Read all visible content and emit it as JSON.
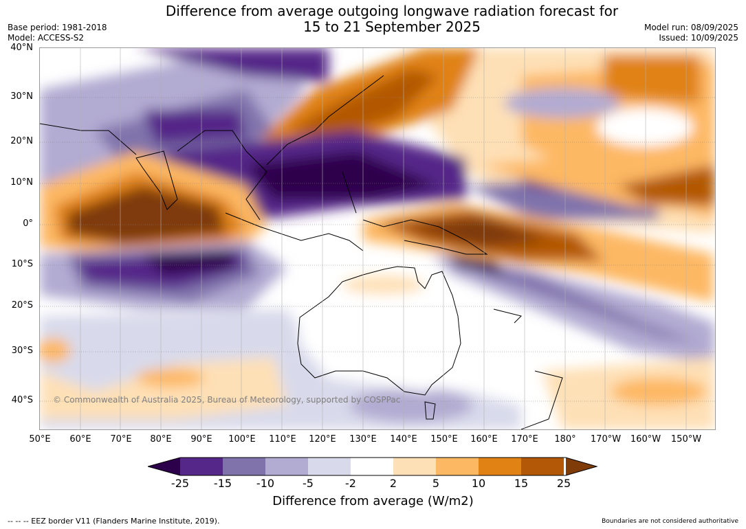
{
  "title_line1": "Difference from average outgoing longwave radiation forecast for",
  "title_line2": "15 to 21 September 2025",
  "base_period": "Base period: 1981-2018",
  "model": "Model: ACCESS-S2",
  "model_run": "Model run: 08/09/2025",
  "issued": "Issued: 10/09/2025",
  "copyright": "© Commonwealth of Australia 2025, Bureau of Meteorology, supported by COSPPac",
  "lat_labels": [
    "40°N",
    "30°N",
    "20°N",
    "10°N",
    "0°",
    "10°S",
    "20°S",
    "30°S",
    "40°S"
  ],
  "lon_labels": [
    "50°E",
    "60°E",
    "70°E",
    "80°E",
    "90°E",
    "100°E",
    "110°E",
    "120°E",
    "130°E",
    "140°E",
    "150°E",
    "160°E",
    "170°E",
    "180°",
    "170°W",
    "160°W",
    "150°W"
  ],
  "colorbar": {
    "ticks": [
      "-25",
      "-15",
      "-10",
      "-5",
      "-2",
      "2",
      "5",
      "10",
      "15",
      "25"
    ],
    "colors": [
      "#2d004b",
      "#542788",
      "#8073ac",
      "#b2abd2",
      "#d8daeb",
      "#ffffff",
      "#fee0b6",
      "#fdb863",
      "#e08214",
      "#b35806",
      "#7f3b08"
    ],
    "label": "Difference from average (W/m2)"
  },
  "footer_left": "-- -- -- EEZ border V11 (Flanders Marine Institute, 2019).",
  "footer_right": "Boundaries are not considered authoritative"
}
